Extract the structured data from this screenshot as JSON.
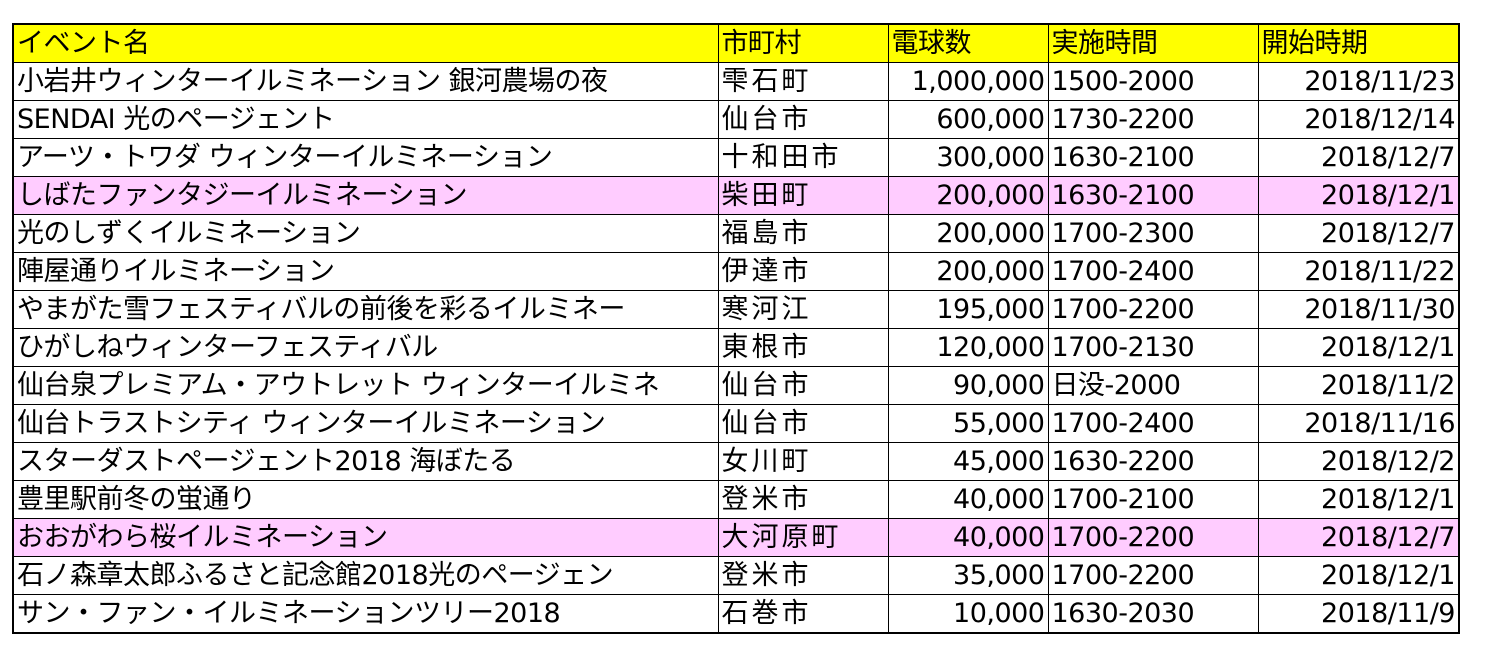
{
  "headers": [
    "イベント名",
    "市町村",
    "電球数",
    "実施時間",
    "開始時期"
  ],
  "highlight_color": "#ffccff",
  "header_color": "#ffff00",
  "rows": [
    {
      "name": "小岩井ウィンターイルミネーション 銀河農場の夜",
      "city": "雫石町",
      "bulbs": "1,000,000",
      "time": "1500-2000",
      "start": "2018/11/23",
      "highlight": false
    },
    {
      "name": "SENDAI 光のページェント",
      "city": "仙台市",
      "bulbs": "600,000",
      "time": "1730-2200",
      "start": "2018/12/14",
      "highlight": false
    },
    {
      "name": "アーツ・トワダ ウィンターイルミネーション",
      "city": "十和田市",
      "bulbs": "300,000",
      "time": "1630-2100",
      "start": "2018/12/7",
      "highlight": false
    },
    {
      "name": "しばたファンタジーイルミネーション",
      "city": "柴田町",
      "bulbs": "200,000",
      "time": "1630-2100",
      "start": "2018/12/1",
      "highlight": true
    },
    {
      "name": "光のしずくイルミネーション",
      "city": "福島市",
      "bulbs": "200,000",
      "time": "1700-2300",
      "start": "2018/12/7",
      "highlight": false
    },
    {
      "name": "陣屋通りイルミネーション",
      "city": "伊達市",
      "bulbs": "200,000",
      "time": "1700-2400",
      "start": "2018/11/22",
      "highlight": false
    },
    {
      "name": "やまがた雪フェスティバルの前後を彩るイルミネー",
      "city": "寒河江",
      "bulbs": "195,000",
      "time": "1700-2200",
      "start": "2018/11/30",
      "highlight": false
    },
    {
      "name": "ひがしねウィンターフェスティバル",
      "city": "東根市",
      "bulbs": "120,000",
      "time": "1700-2130",
      "start": "2018/12/1",
      "highlight": false
    },
    {
      "name": "仙台泉プレミアム・アウトレット ウィンターイルミネ",
      "city": "仙台市",
      "bulbs": "90,000",
      "time": "日没-2000",
      "start": "2018/11/2",
      "highlight": false
    },
    {
      "name": "仙台トラストシティ ウィンターイルミネーション",
      "city": "仙台市",
      "bulbs": "55,000",
      "time": "1700-2400",
      "start": "2018/11/16",
      "highlight": false
    },
    {
      "name": "スターダストページェント2018 海ぼたる",
      "city": "女川町",
      "bulbs": "45,000",
      "time": "1630-2200",
      "start": "2018/12/2",
      "highlight": false
    },
    {
      "name": "豊里駅前冬の蛍通り",
      "city": "登米市",
      "bulbs": "40,000",
      "time": "1700-2100",
      "start": "2018/12/1",
      "highlight": false
    },
    {
      "name": "おおがわら桜イルミネーション",
      "city": "大河原町",
      "bulbs": "40,000",
      "time": "1700-2200",
      "start": "2018/12/7",
      "highlight": true
    },
    {
      "name": "石ノ森章太郎ふるさと記念館2018光のページェン",
      "city": "登米市",
      "bulbs": "35,000",
      "time": "1700-2200",
      "start": "2018/12/1",
      "highlight": false
    },
    {
      "name": "サン・ファン・イルミネーションツリー2018",
      "city": "石巻市",
      "bulbs": "10,000",
      "time": "1630-2030",
      "start": "2018/11/9",
      "highlight": false
    }
  ]
}
